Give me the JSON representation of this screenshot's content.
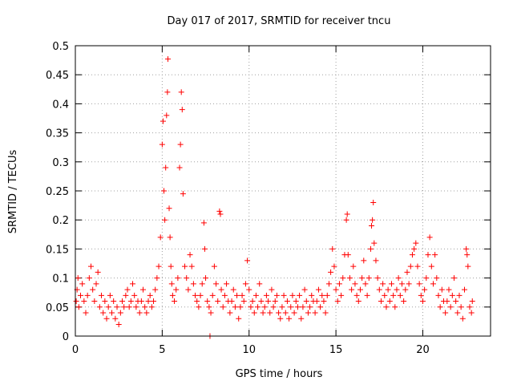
{
  "chart_data": {
    "type": "scatter",
    "title": "Day 017 of 2017, SRMTID for receiver tncu",
    "xlabel": "GPS time / hours",
    "ylabel": "SRMTID / TECUs",
    "xlim": [
      0,
      23.9
    ],
    "ylim": [
      0,
      0.5
    ],
    "x_ticks": [
      0,
      5,
      10,
      15,
      20
    ],
    "x_tick_labels": [
      "0",
      "5",
      "10",
      "15",
      "20"
    ],
    "y_ticks": [
      0,
      0.05,
      0.1,
      0.15,
      0.2,
      0.25,
      0.3,
      0.35,
      0.4,
      0.45,
      0.5
    ],
    "y_tick_labels": [
      "0",
      "0.05",
      "0.1",
      "0.15",
      "0.2",
      "0.25",
      "0.3",
      "0.35",
      "0.4",
      "0.45",
      "0.5"
    ],
    "grid": true,
    "marker": "plus",
    "series": [
      {
        "name": "SRMTID",
        "color": "#ff0000",
        "points": [
          [
            0.05,
            0.06
          ],
          [
            0.1,
            0.08
          ],
          [
            0.15,
            0.1
          ],
          [
            0.2,
            0.05
          ],
          [
            0.3,
            0.07
          ],
          [
            0.4,
            0.09
          ],
          [
            0.5,
            0.06
          ],
          [
            0.6,
            0.04
          ],
          [
            0.7,
            0.07
          ],
          [
            0.8,
            0.1
          ],
          [
            0.9,
            0.12
          ],
          [
            1.0,
            0.08
          ],
          [
            1.1,
            0.06
          ],
          [
            1.2,
            0.09
          ],
          [
            1.3,
            0.11
          ],
          [
            1.4,
            0.05
          ],
          [
            1.5,
            0.07
          ],
          [
            1.6,
            0.04
          ],
          [
            1.7,
            0.06
          ],
          [
            1.8,
            0.03
          ],
          [
            1.9,
            0.05
          ],
          [
            2.0,
            0.07
          ],
          [
            2.1,
            0.04
          ],
          [
            2.2,
            0.06
          ],
          [
            2.3,
            0.03
          ],
          [
            2.4,
            0.05
          ],
          [
            2.5,
            0.02
          ],
          [
            2.6,
            0.04
          ],
          [
            2.7,
            0.06
          ],
          [
            2.8,
            0.05
          ],
          [
            2.9,
            0.07
          ],
          [
            3.0,
            0.08
          ],
          [
            3.1,
            0.05
          ],
          [
            3.2,
            0.06
          ],
          [
            3.3,
            0.09
          ],
          [
            3.4,
            0.07
          ],
          [
            3.5,
            0.05
          ],
          [
            3.6,
            0.06
          ],
          [
            3.7,
            0.04
          ],
          [
            3.8,
            0.06
          ],
          [
            3.9,
            0.08
          ],
          [
            4.0,
            0.05
          ],
          [
            4.1,
            0.04
          ],
          [
            4.2,
            0.06
          ],
          [
            4.3,
            0.07
          ],
          [
            4.4,
            0.05
          ],
          [
            4.5,
            0.06
          ],
          [
            4.6,
            0.08
          ],
          [
            4.7,
            0.1
          ],
          [
            4.8,
            0.12
          ],
          [
            4.9,
            0.17
          ],
          [
            5.0,
            0.33
          ],
          [
            5.05,
            0.37
          ],
          [
            5.1,
            0.25
          ],
          [
            5.15,
            0.2
          ],
          [
            5.2,
            0.29
          ],
          [
            5.25,
            0.38
          ],
          [
            5.3,
            0.42
          ],
          [
            5.33,
            0.477
          ],
          [
            5.4,
            0.22
          ],
          [
            5.45,
            0.17
          ],
          [
            5.5,
            0.12
          ],
          [
            5.55,
            0.09
          ],
          [
            5.6,
            0.07
          ],
          [
            5.7,
            0.06
          ],
          [
            5.8,
            0.08
          ],
          [
            5.9,
            0.1
          ],
          [
            6.0,
            0.29
          ],
          [
            6.05,
            0.33
          ],
          [
            6.1,
            0.42
          ],
          [
            6.15,
            0.39
          ],
          [
            6.2,
            0.245
          ],
          [
            6.3,
            0.12
          ],
          [
            6.4,
            0.1
          ],
          [
            6.5,
            0.08
          ],
          [
            6.6,
            0.14
          ],
          [
            6.7,
            0.12
          ],
          [
            6.8,
            0.09
          ],
          [
            6.9,
            0.07
          ],
          [
            7.0,
            0.06
          ],
          [
            7.1,
            0.05
          ],
          [
            7.2,
            0.07
          ],
          [
            7.3,
            0.09
          ],
          [
            7.4,
            0.195
          ],
          [
            7.45,
            0.15
          ],
          [
            7.5,
            0.1
          ],
          [
            7.6,
            0.06
          ],
          [
            7.7,
            0.05
          ],
          [
            7.75,
            0.0
          ],
          [
            7.8,
            0.04
          ],
          [
            7.9,
            0.07
          ],
          [
            8.0,
            0.12
          ],
          [
            8.1,
            0.09
          ],
          [
            8.2,
            0.06
          ],
          [
            8.3,
            0.215
          ],
          [
            8.35,
            0.21
          ],
          [
            8.4,
            0.08
          ],
          [
            8.5,
            0.05
          ],
          [
            8.6,
            0.07
          ],
          [
            8.7,
            0.09
          ],
          [
            8.8,
            0.06
          ],
          [
            8.9,
            0.04
          ],
          [
            9.0,
            0.06
          ],
          [
            9.1,
            0.08
          ],
          [
            9.2,
            0.05
          ],
          [
            9.3,
            0.07
          ],
          [
            9.4,
            0.03
          ],
          [
            9.5,
            0.05
          ],
          [
            9.6,
            0.07
          ],
          [
            9.7,
            0.06
          ],
          [
            9.8,
            0.09
          ],
          [
            9.9,
            0.13
          ],
          [
            10.0,
            0.08
          ],
          [
            10.1,
            0.05
          ],
          [
            10.2,
            0.06
          ],
          [
            10.3,
            0.04
          ],
          [
            10.4,
            0.07
          ],
          [
            10.5,
            0.05
          ],
          [
            10.6,
            0.09
          ],
          [
            10.7,
            0.06
          ],
          [
            10.8,
            0.04
          ],
          [
            10.9,
            0.05
          ],
          [
            11.0,
            0.07
          ],
          [
            11.1,
            0.06
          ],
          [
            11.2,
            0.04
          ],
          [
            11.3,
            0.08
          ],
          [
            11.4,
            0.05
          ],
          [
            11.5,
            0.06
          ],
          [
            11.6,
            0.07
          ],
          [
            11.7,
            0.04
          ],
          [
            11.8,
            0.03
          ],
          [
            11.9,
            0.05
          ],
          [
            12.0,
            0.07
          ],
          [
            12.1,
            0.04
          ],
          [
            12.2,
            0.06
          ],
          [
            12.3,
            0.03
          ],
          [
            12.4,
            0.05
          ],
          [
            12.5,
            0.07
          ],
          [
            12.6,
            0.04
          ],
          [
            12.7,
            0.06
          ],
          [
            12.8,
            0.05
          ],
          [
            12.9,
            0.07
          ],
          [
            13.0,
            0.03
          ],
          [
            13.1,
            0.05
          ],
          [
            13.2,
            0.08
          ],
          [
            13.3,
            0.06
          ],
          [
            13.4,
            0.04
          ],
          [
            13.5,
            0.05
          ],
          [
            13.6,
            0.07
          ],
          [
            13.7,
            0.06
          ],
          [
            13.8,
            0.04
          ],
          [
            13.9,
            0.06
          ],
          [
            14.0,
            0.08
          ],
          [
            14.1,
            0.05
          ],
          [
            14.2,
            0.07
          ],
          [
            14.3,
            0.06
          ],
          [
            14.4,
            0.04
          ],
          [
            14.5,
            0.07
          ],
          [
            14.6,
            0.09
          ],
          [
            14.7,
            0.11
          ],
          [
            14.8,
            0.15
          ],
          [
            14.9,
            0.12
          ],
          [
            15.0,
            0.08
          ],
          [
            15.1,
            0.06
          ],
          [
            15.2,
            0.09
          ],
          [
            15.3,
            0.07
          ],
          [
            15.4,
            0.1
          ],
          [
            15.5,
            0.14
          ],
          [
            15.6,
            0.2
          ],
          [
            15.65,
            0.21
          ],
          [
            15.7,
            0.14
          ],
          [
            15.8,
            0.1
          ],
          [
            15.9,
            0.08
          ],
          [
            16.0,
            0.12
          ],
          [
            16.1,
            0.09
          ],
          [
            16.2,
            0.07
          ],
          [
            16.3,
            0.06
          ],
          [
            16.4,
            0.08
          ],
          [
            16.5,
            0.1
          ],
          [
            16.6,
            0.13
          ],
          [
            16.7,
            0.09
          ],
          [
            16.8,
            0.07
          ],
          [
            16.9,
            0.1
          ],
          [
            17.0,
            0.15
          ],
          [
            17.05,
            0.19
          ],
          [
            17.1,
            0.2
          ],
          [
            17.15,
            0.23
          ],
          [
            17.2,
            0.16
          ],
          [
            17.3,
            0.13
          ],
          [
            17.4,
            0.1
          ],
          [
            17.5,
            0.08
          ],
          [
            17.6,
            0.06
          ],
          [
            17.7,
            0.09
          ],
          [
            17.8,
            0.07
          ],
          [
            17.9,
            0.05
          ],
          [
            18.0,
            0.08
          ],
          [
            18.1,
            0.06
          ],
          [
            18.2,
            0.09
          ],
          [
            18.3,
            0.07
          ],
          [
            18.4,
            0.05
          ],
          [
            18.5,
            0.08
          ],
          [
            18.6,
            0.1
          ],
          [
            18.7,
            0.07
          ],
          [
            18.8,
            0.09
          ],
          [
            18.9,
            0.06
          ],
          [
            19.0,
            0.08
          ],
          [
            19.1,
            0.11
          ],
          [
            19.2,
            0.09
          ],
          [
            19.3,
            0.12
          ],
          [
            19.4,
            0.14
          ],
          [
            19.5,
            0.15
          ],
          [
            19.6,
            0.16
          ],
          [
            19.7,
            0.12
          ],
          [
            19.8,
            0.09
          ],
          [
            19.9,
            0.07
          ],
          [
            20.0,
            0.06
          ],
          [
            20.1,
            0.08
          ],
          [
            20.2,
            0.1
          ],
          [
            20.3,
            0.14
          ],
          [
            20.4,
            0.17
          ],
          [
            20.5,
            0.12
          ],
          [
            20.6,
            0.09
          ],
          [
            20.7,
            0.14
          ],
          [
            20.8,
            0.1
          ],
          [
            20.9,
            0.07
          ],
          [
            21.0,
            0.05
          ],
          [
            21.1,
            0.08
          ],
          [
            21.2,
            0.06
          ],
          [
            21.3,
            0.04
          ],
          [
            21.4,
            0.06
          ],
          [
            21.5,
            0.08
          ],
          [
            21.6,
            0.05
          ],
          [
            21.7,
            0.07
          ],
          [
            21.8,
            0.1
          ],
          [
            21.9,
            0.06
          ],
          [
            22.0,
            0.04
          ],
          [
            22.1,
            0.07
          ],
          [
            22.2,
            0.05
          ],
          [
            22.3,
            0.03
          ],
          [
            22.4,
            0.08
          ],
          [
            22.5,
            0.15
          ],
          [
            22.55,
            0.14
          ],
          [
            22.6,
            0.12
          ],
          [
            22.7,
            0.05
          ],
          [
            22.8,
            0.04
          ],
          [
            22.85,
            0.06
          ]
        ]
      }
    ]
  }
}
